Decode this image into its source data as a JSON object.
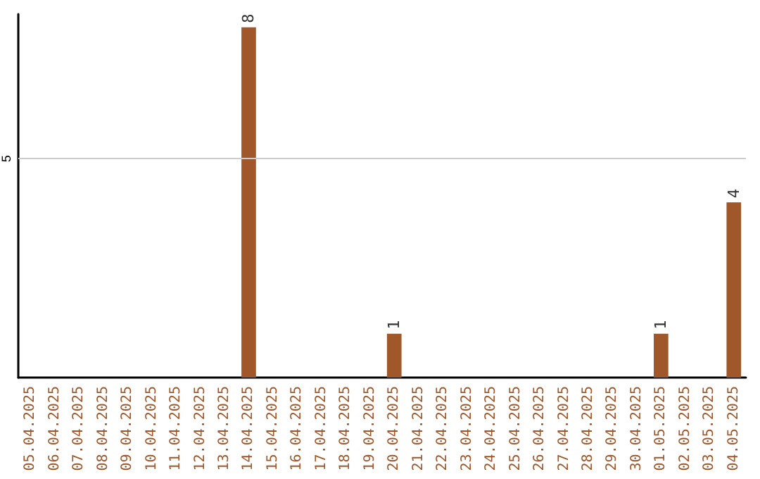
{
  "chart_data": {
    "type": "bar",
    "categories": [
      "05.04.2025",
      "06.04.2025",
      "07.04.2025",
      "08.04.2025",
      "09.04.2025",
      "10.04.2025",
      "11.04.2025",
      "12.04.2025",
      "13.04.2025",
      "14.04.2025",
      "15.04.2025",
      "16.04.2025",
      "17.04.2025",
      "18.04.2025",
      "19.04.2025",
      "20.04.2025",
      "21.04.2025",
      "22.04.2025",
      "23.04.2025",
      "24.04.2025",
      "25.04.2025",
      "26.04.2025",
      "27.04.2025",
      "28.04.2025",
      "29.04.2025",
      "30.04.2025",
      "01.05.2025",
      "02.05.2025",
      "03.05.2025",
      "04.05.2025"
    ],
    "values": [
      0,
      0,
      0,
      0,
      0,
      0,
      0,
      0,
      0,
      8,
      0,
      0,
      0,
      0,
      0,
      1,
      0,
      0,
      0,
      0,
      0,
      0,
      0,
      0,
      0,
      0,
      1,
      0,
      0,
      4
    ],
    "value_labels": [
      null,
      null,
      null,
      null,
      null,
      null,
      null,
      null,
      null,
      "8",
      null,
      null,
      null,
      null,
      null,
      "1",
      null,
      null,
      null,
      null,
      null,
      null,
      null,
      null,
      null,
      null,
      "1",
      null,
      null,
      "4"
    ],
    "color": "#a0582a",
    "ylim": [
      0,
      8.3
    ],
    "yticks": [
      {
        "value": 0,
        "label": null
      },
      5
    ],
    "grid": "y"
  }
}
